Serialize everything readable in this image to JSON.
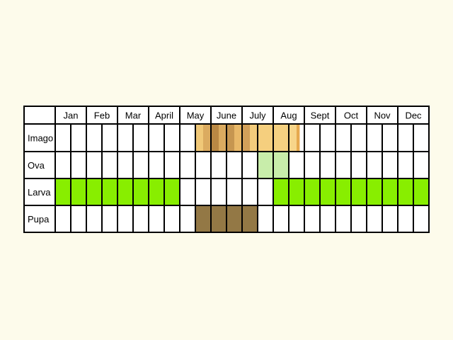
{
  "chart_data": {
    "type": "table",
    "months": [
      "Jan",
      "Feb",
      "Mar",
      "April",
      "May",
      "June",
      "July",
      "Aug",
      "Sept",
      "Oct",
      "Nov",
      "Dec"
    ],
    "periods_per_month": 2,
    "rows": [
      {
        "label": "Imago",
        "cells": [
          {
            "from": 9,
            "to": 9.5,
            "color": "#f0c878"
          },
          {
            "from": 9.5,
            "to": 10,
            "color": "#dbab60"
          },
          {
            "from": 10,
            "to": 10.5,
            "color": "#b98844"
          },
          {
            "from": 10.5,
            "to": 11,
            "color": "#dbab60"
          },
          {
            "from": 11,
            "to": 11.5,
            "color": "#c69650"
          },
          {
            "from": 11.5,
            "to": 12,
            "color": "#e8b868"
          },
          {
            "from": 12,
            "to": 12.5,
            "color": "#d2a05a"
          },
          {
            "from": 12.5,
            "to": 13,
            "color": "#f3cc7c"
          },
          {
            "from": 13,
            "to": 14,
            "color": "#f5cf7e"
          },
          {
            "from": 14,
            "to": 15,
            "color": "#f5d181"
          },
          {
            "from": 15,
            "to": 15.5,
            "color": "#f7d58a"
          },
          {
            "from": 15.5,
            "to": 15.7,
            "color": "#e6a94e"
          }
        ]
      },
      {
        "label": "Ova",
        "cells": [
          {
            "from": 13,
            "to": 15,
            "color": "#c8edaa"
          }
        ]
      },
      {
        "label": "Larva",
        "cells": [
          {
            "from": 0,
            "to": 8,
            "color": "#88ee00"
          },
          {
            "from": 14,
            "to": 24,
            "color": "#88ee00"
          }
        ]
      },
      {
        "label": "Pupa",
        "cells": [
          {
            "from": 9,
            "to": 13,
            "color": "#937845"
          }
        ]
      }
    ],
    "colors": {
      "background": "#fdfbeb",
      "cell_background": "#ffffff",
      "grid": "#000000"
    }
  }
}
